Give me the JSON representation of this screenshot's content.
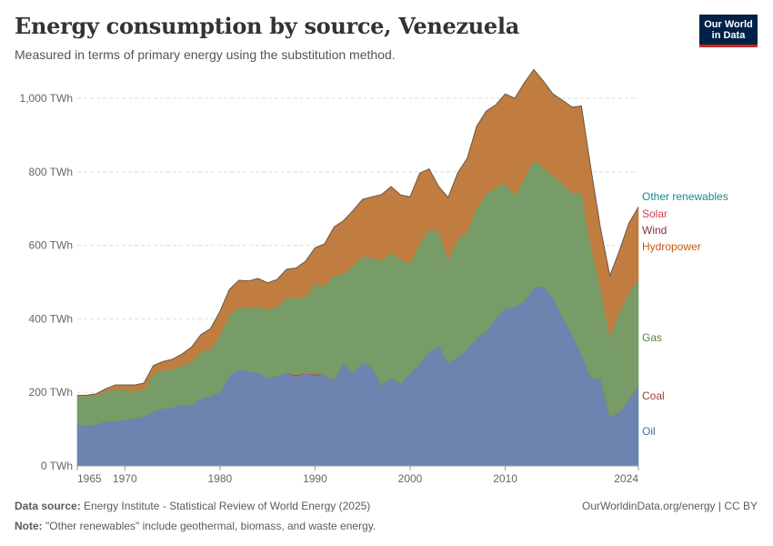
{
  "header": {
    "title": "Energy consumption by source, Venezuela",
    "subtitle": "Measured in terms of primary energy using the substitution method.",
    "logo_line1": "Our World",
    "logo_line2": "in Data"
  },
  "footer": {
    "source_label": "Data source:",
    "source_text": "Energy Institute - Statistical Review of World Energy (2025)",
    "note_label": "Note:",
    "note_text": "\"Other renewables\" include geothermal, biomass, and waste energy.",
    "credit": "OurWorldinData.org/energy | CC BY"
  },
  "chart_data": {
    "type": "area",
    "stacked": true,
    "title": "Energy consumption by source, Venezuela",
    "subtitle": "Measured in terms of primary energy using the substitution method.",
    "unit": "TWh",
    "ylim": [
      0,
      1000
    ],
    "yticks": [
      0,
      200,
      400,
      600,
      800,
      1000
    ],
    "ytick_labels": [
      "0 TWh",
      "200 TWh",
      "400 TWh",
      "600 TWh",
      "800 TWh",
      "1,000 TWh"
    ],
    "xlim": [
      1965,
      2024
    ],
    "xticks": [
      1965,
      1970,
      1980,
      1990,
      2000,
      2010,
      2024
    ],
    "grid": "horizontal dashed",
    "legend_placement": "right, labels at series end",
    "x": [
      1965,
      1966,
      1967,
      1968,
      1969,
      1970,
      1971,
      1972,
      1973,
      1974,
      1975,
      1976,
      1977,
      1978,
      1979,
      1980,
      1981,
      1982,
      1983,
      1984,
      1985,
      1986,
      1987,
      1988,
      1989,
      1990,
      1991,
      1992,
      1993,
      1994,
      1995,
      1996,
      1997,
      1998,
      1999,
      2000,
      2001,
      2002,
      2003,
      2004,
      2005,
      2006,
      2007,
      2008,
      2009,
      2010,
      2011,
      2012,
      2013,
      2014,
      2015,
      2016,
      2017,
      2018,
      2019,
      2020,
      2021,
      2022,
      2023,
      2024
    ],
    "series": [
      {
        "name": "Oil",
        "color": "#6d84b0",
        "label_color": "#4c6a9c",
        "values": [
          112,
          110,
          112,
          122,
          122,
          126,
          128,
          135,
          148,
          156,
          158,
          166,
          165,
          182,
          190,
          200,
          245,
          262,
          258,
          254,
          238,
          244,
          254,
          243,
          251,
          246,
          249,
          234,
          279,
          252,
          282,
          268,
          218,
          240,
          223,
          252,
          278,
          310,
          328,
          280,
          295,
          318,
          348,
          365,
          402,
          428,
          432,
          448,
          484,
          490,
          458,
          407,
          358,
          304,
          240,
          236,
          135,
          145,
          180,
          217
        ]
      },
      {
        "name": "Coal",
        "color": "#b0504f",
        "label_color": "#9a3a3a",
        "values": [
          0,
          0,
          0,
          0,
          0,
          0,
          0,
          0,
          0,
          0,
          0,
          0,
          0,
          0,
          0,
          0,
          0,
          0,
          0,
          0,
          0,
          0,
          0,
          5,
          0,
          4,
          0,
          0,
          0,
          0,
          0,
          0,
          0,
          0,
          0,
          0,
          0,
          0,
          0,
          0,
          0,
          0,
          0,
          0,
          0,
          0,
          0,
          0,
          0,
          0,
          0,
          0,
          0,
          0,
          0,
          0,
          0,
          0,
          0,
          0
        ]
      },
      {
        "name": "Gas",
        "color": "#779c67",
        "label_color": "#578145",
        "values": [
          78,
          80,
          80,
          80,
          86,
          80,
          77,
          72,
          103,
          104,
          105,
          108,
          118,
          130,
          128,
          155,
          167,
          170,
          172,
          181,
          188,
          188,
          206,
          208,
          210,
          245,
          240,
          284,
          244,
          293,
          288,
          298,
          340,
          340,
          340,
          300,
          325,
          333,
          310,
          280,
          322,
          320,
          354,
          377,
          355,
          342,
          304,
          334,
          348,
          323,
          332,
          363,
          384,
          439,
          360,
          250,
          215,
          272,
          292,
          290
        ]
      },
      {
        "name": "Hydropower",
        "color": "#c17d3f",
        "label_color": "#be5915",
        "values": [
          2,
          2,
          4,
          8,
          12,
          14,
          15,
          18,
          22,
          24,
          27,
          30,
          40,
          45,
          55,
          65,
          68,
          73,
          73,
          75,
          72,
          75,
          75,
          82,
          96,
          98,
          115,
          132,
          144,
          150,
          155,
          166,
          180,
          180,
          174,
          180,
          193,
          165,
          122,
          170,
          180,
          199,
          222,
          223,
          225,
          242,
          264,
          260,
          246,
          234,
          222,
          225,
          234,
          236,
          210,
          162,
          167,
          168,
          188,
          197
        ]
      },
      {
        "name": "Wind",
        "color": "#a2559c",
        "label_color": "#883039",
        "values": [
          0,
          0,
          0,
          0,
          0,
          0,
          0,
          0,
          0,
          0,
          0,
          0,
          0,
          0,
          0,
          0,
          0,
          0,
          0,
          0,
          0,
          0,
          0,
          0,
          0,
          0,
          0,
          0,
          0,
          0,
          0,
          0,
          0,
          0,
          0,
          0,
          0,
          0,
          0,
          0,
          0,
          0,
          0,
          0,
          0,
          0,
          0,
          0,
          0,
          0,
          0,
          0,
          0,
          0,
          0,
          0,
          0,
          0,
          0,
          0
        ]
      },
      {
        "name": "Solar",
        "color": "#d85f7a",
        "label_color": "#d73c50",
        "values": [
          0,
          0,
          0,
          0,
          0,
          0,
          0,
          0,
          0,
          0,
          0,
          0,
          0,
          0,
          0,
          0,
          0,
          0,
          0,
          0,
          0,
          0,
          0,
          0,
          0,
          0,
          0,
          0,
          0,
          0,
          0,
          0,
          0,
          0,
          0,
          0,
          0,
          0,
          0,
          0,
          0,
          0,
          0,
          0,
          0,
          0,
          0,
          0,
          0,
          0,
          0,
          0,
          0,
          0,
          0,
          0,
          0,
          0,
          0,
          0
        ]
      },
      {
        "name": "Other renewables",
        "color": "#2f8f8a",
        "label_color": "#18878d",
        "values": [
          0,
          0,
          0,
          0,
          0,
          0,
          0,
          0,
          0,
          0,
          0,
          0,
          0,
          0,
          0,
          0,
          0,
          0,
          0,
          0,
          0,
          0,
          0,
          0,
          0,
          0,
          0,
          0,
          0,
          0,
          0,
          0,
          0,
          0,
          0,
          0,
          0,
          0,
          0,
          0,
          0,
          0,
          0,
          0,
          0,
          0,
          0,
          0,
          0,
          0,
          0,
          0,
          0,
          0,
          0,
          0,
          0,
          0,
          0,
          0
        ]
      }
    ]
  }
}
